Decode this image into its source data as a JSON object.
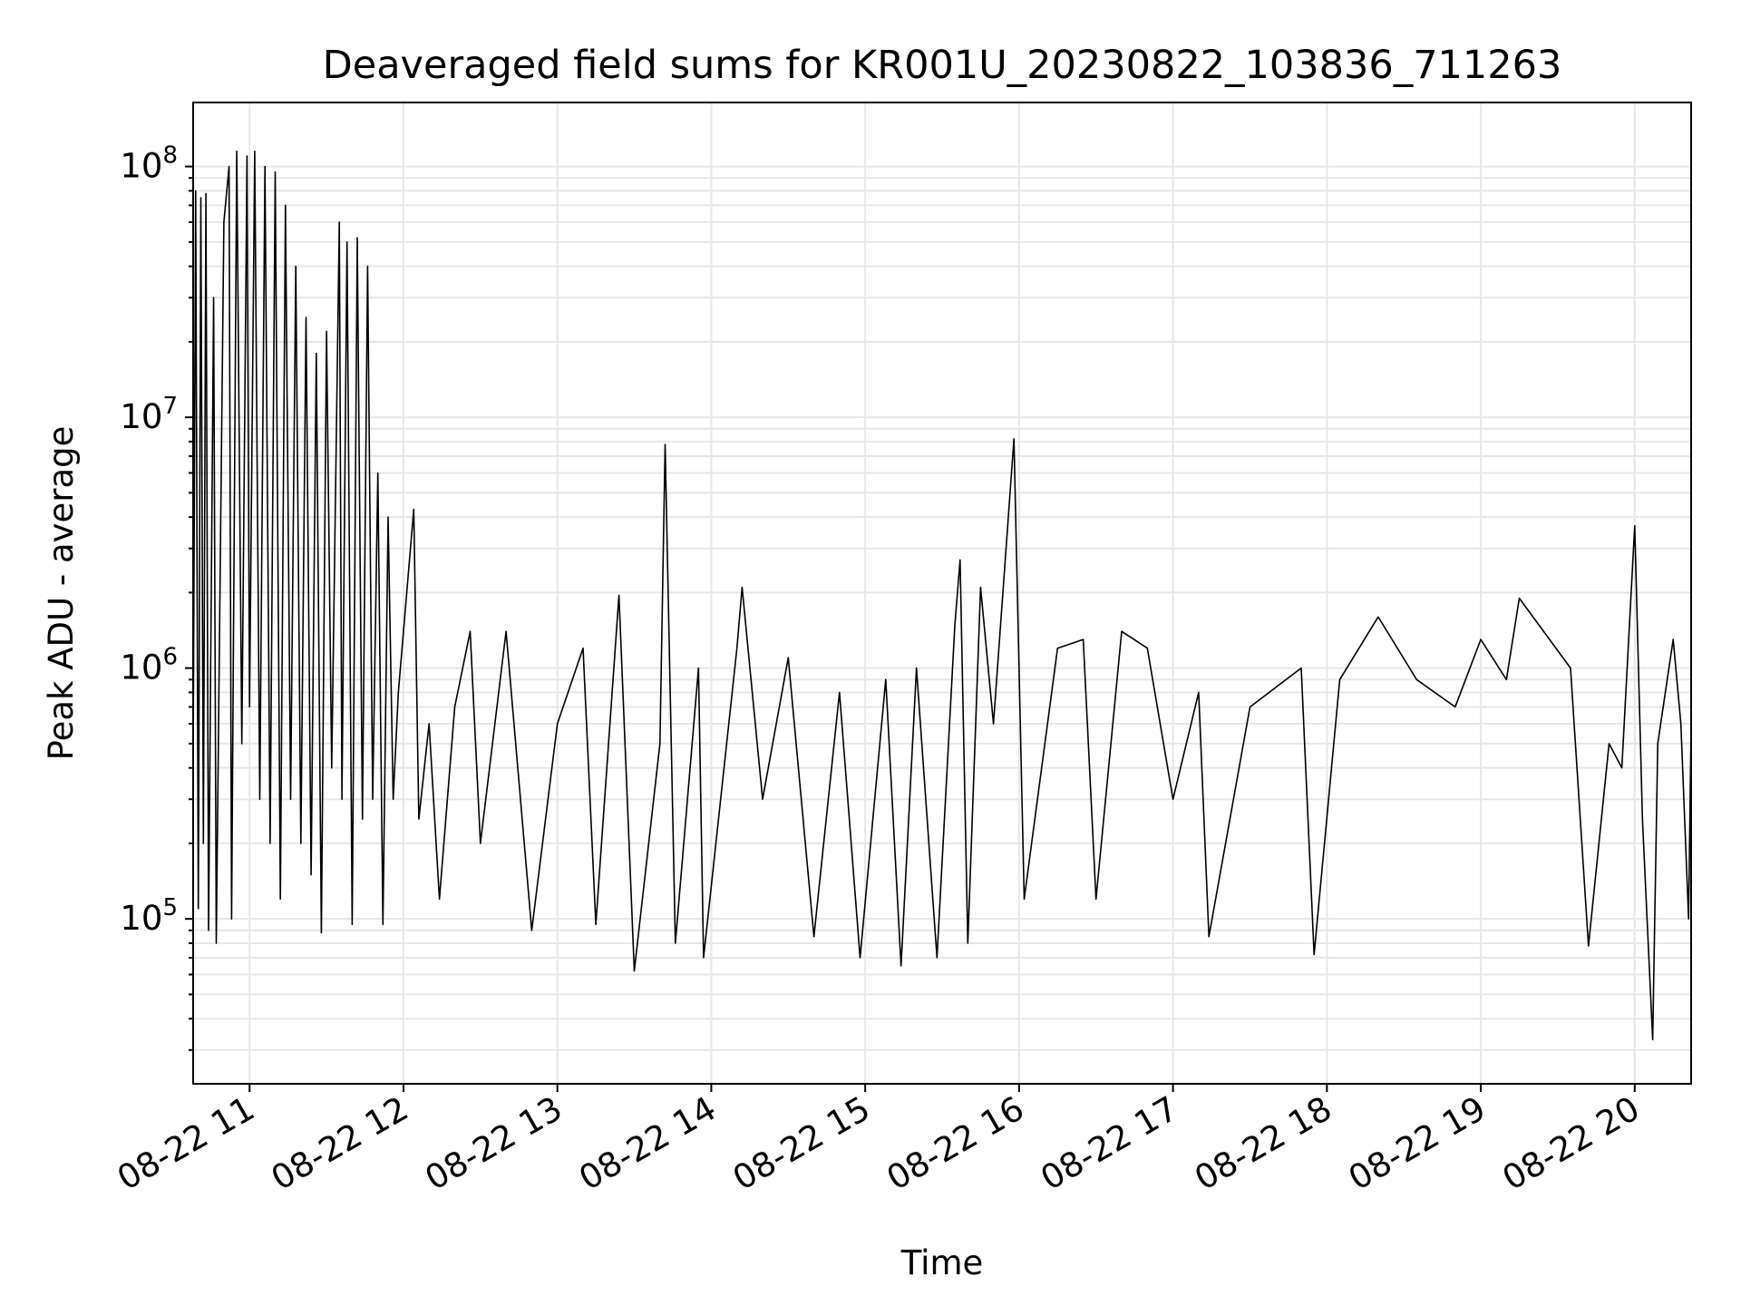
{
  "chart_data": {
    "type": "line",
    "title": "Deaveraged field sums for KR001U_20230822_103836_711263",
    "xlabel": "Time",
    "ylabel": "Peak ADU - average",
    "yscale": "log",
    "ylim": [
      22000,
      180000000
    ],
    "xlim": [
      "2023-08-22 10:38",
      "2023-08-22 20:22"
    ],
    "x_ticks": [
      {
        "t": "2023-08-22 11:00",
        "label": "08-22 11"
      },
      {
        "t": "2023-08-22 12:00",
        "label": "08-22 12"
      },
      {
        "t": "2023-08-22 13:00",
        "label": "08-22 13"
      },
      {
        "t": "2023-08-22 14:00",
        "label": "08-22 14"
      },
      {
        "t": "2023-08-22 15:00",
        "label": "08-22 15"
      },
      {
        "t": "2023-08-22 16:00",
        "label": "08-22 16"
      },
      {
        "t": "2023-08-22 17:00",
        "label": "08-22 17"
      },
      {
        "t": "2023-08-22 18:00",
        "label": "08-22 18"
      },
      {
        "t": "2023-08-22 19:00",
        "label": "08-22 19"
      },
      {
        "t": "2023-08-22 20:00",
        "label": "08-22 20"
      }
    ],
    "y_ticks": [
      {
        "value": 100000,
        "base": "10",
        "exp": "5"
      },
      {
        "value": 1000000,
        "base": "10",
        "exp": "6"
      },
      {
        "value": 10000000,
        "base": "10",
        "exp": "7"
      },
      {
        "value": 100000000,
        "base": "10",
        "exp": "8"
      }
    ],
    "grid": true,
    "line_color": "#000000",
    "series": [
      {
        "points": [
          [
            "2023-08-22 10:38",
            400000
          ],
          [
            "2023-08-22 10:39",
            80000000
          ],
          [
            "2023-08-22 10:40",
            110000
          ],
          [
            "2023-08-22 10:41",
            75000000
          ],
          [
            "2023-08-22 10:42",
            200000
          ],
          [
            "2023-08-22 10:43",
            78000000
          ],
          [
            "2023-08-22 10:44",
            90000
          ],
          [
            "2023-08-22 10:46",
            30000000
          ],
          [
            "2023-08-22 10:47",
            80000
          ],
          [
            "2023-08-22 10:50",
            60000000
          ],
          [
            "2023-08-22 10:52",
            100000000
          ],
          [
            "2023-08-22 10:53",
            100000
          ],
          [
            "2023-08-22 10:55",
            115000000
          ],
          [
            "2023-08-22 10:57",
            500000
          ],
          [
            "2023-08-22 10:59",
            110000000
          ],
          [
            "2023-08-22 11:00",
            700000
          ],
          [
            "2023-08-22 11:02",
            115000000
          ],
          [
            "2023-08-22 11:04",
            300000
          ],
          [
            "2023-08-22 11:06",
            100000000
          ],
          [
            "2023-08-22 11:08",
            200000
          ],
          [
            "2023-08-22 11:10",
            95000000
          ],
          [
            "2023-08-22 11:12",
            120000
          ],
          [
            "2023-08-22 11:14",
            70000000
          ],
          [
            "2023-08-22 11:16",
            300000
          ],
          [
            "2023-08-22 11:18",
            40000000
          ],
          [
            "2023-08-22 11:20",
            200000
          ],
          [
            "2023-08-22 11:22",
            25000000
          ],
          [
            "2023-08-22 11:24",
            150000
          ],
          [
            "2023-08-22 11:26",
            18000000
          ],
          [
            "2023-08-22 11:28",
            88000
          ],
          [
            "2023-08-22 11:30",
            22000000
          ],
          [
            "2023-08-22 11:32",
            400000
          ],
          [
            "2023-08-22 11:35",
            60000000
          ],
          [
            "2023-08-22 11:36",
            300000
          ],
          [
            "2023-08-22 11:38",
            50000000
          ],
          [
            "2023-08-22 11:40",
            95000
          ],
          [
            "2023-08-22 11:42",
            52000000
          ],
          [
            "2023-08-22 11:44",
            250000
          ],
          [
            "2023-08-22 11:46",
            40000000
          ],
          [
            "2023-08-22 11:48",
            300000
          ],
          [
            "2023-08-22 11:50",
            6000000
          ],
          [
            "2023-08-22 11:52",
            95000
          ],
          [
            "2023-08-22 11:54",
            4000000
          ],
          [
            "2023-08-22 11:56",
            300000
          ],
          [
            "2023-08-22 11:58",
            800000
          ],
          [
            "2023-08-22 12:04",
            4300000
          ],
          [
            "2023-08-22 12:06",
            250000
          ],
          [
            "2023-08-22 12:10",
            600000
          ],
          [
            "2023-08-22 12:14",
            120000
          ],
          [
            "2023-08-22 12:20",
            700000
          ],
          [
            "2023-08-22 12:26",
            1400000
          ],
          [
            "2023-08-22 12:30",
            200000
          ],
          [
            "2023-08-22 12:40",
            1400000
          ],
          [
            "2023-08-22 12:50",
            90000
          ],
          [
            "2023-08-22 13:00",
            600000
          ],
          [
            "2023-08-22 13:10",
            1200000
          ],
          [
            "2023-08-22 13:15",
            95000
          ],
          [
            "2023-08-22 13:24",
            1950000
          ],
          [
            "2023-08-22 13:30",
            62000
          ],
          [
            "2023-08-22 13:40",
            500000
          ],
          [
            "2023-08-22 13:42",
            7800000
          ],
          [
            "2023-08-22 13:46",
            80000
          ],
          [
            "2023-08-22 13:55",
            1000000
          ],
          [
            "2023-08-22 13:57",
            70000
          ],
          [
            "2023-08-22 14:10",
            1200000
          ],
          [
            "2023-08-22 14:12",
            2100000
          ],
          [
            "2023-08-22 14:20",
            300000
          ],
          [
            "2023-08-22 14:30",
            1100000
          ],
          [
            "2023-08-22 14:40",
            85000
          ],
          [
            "2023-08-22 14:50",
            800000
          ],
          [
            "2023-08-22 14:58",
            70000
          ],
          [
            "2023-08-22 15:08",
            900000
          ],
          [
            "2023-08-22 15:14",
            65000
          ],
          [
            "2023-08-22 15:20",
            1000000
          ],
          [
            "2023-08-22 15:28",
            70000
          ],
          [
            "2023-08-22 15:35",
            1500000
          ],
          [
            "2023-08-22 15:37",
            2700000
          ],
          [
            "2023-08-22 15:40",
            80000
          ],
          [
            "2023-08-22 15:45",
            2100000
          ],
          [
            "2023-08-22 15:50",
            600000
          ],
          [
            "2023-08-22 15:58",
            8200000
          ],
          [
            "2023-08-22 16:02",
            120000
          ],
          [
            "2023-08-22 16:15",
            1200000
          ],
          [
            "2023-08-22 16:25",
            1300000
          ],
          [
            "2023-08-22 16:30",
            120000
          ],
          [
            "2023-08-22 16:40",
            1400000
          ],
          [
            "2023-08-22 16:50",
            1200000
          ],
          [
            "2023-08-22 17:00",
            300000
          ],
          [
            "2023-08-22 17:10",
            800000
          ],
          [
            "2023-08-22 17:14",
            85000
          ],
          [
            "2023-08-22 17:30",
            700000
          ],
          [
            "2023-08-22 17:50",
            1000000
          ],
          [
            "2023-08-22 17:55",
            72000
          ],
          [
            "2023-08-22 18:05",
            900000
          ],
          [
            "2023-08-22 18:20",
            1600000
          ],
          [
            "2023-08-22 18:35",
            900000
          ],
          [
            "2023-08-22 18:50",
            700000
          ],
          [
            "2023-08-22 19:00",
            1300000
          ],
          [
            "2023-08-22 19:10",
            900000
          ],
          [
            "2023-08-22 19:15",
            1900000
          ],
          [
            "2023-08-22 19:35",
            1000000
          ],
          [
            "2023-08-22 19:42",
            78000
          ],
          [
            "2023-08-22 19:50",
            500000
          ],
          [
            "2023-08-22 19:55",
            400000
          ],
          [
            "2023-08-22 20:00",
            3700000
          ],
          [
            "2023-08-22 20:03",
            250000
          ],
          [
            "2023-08-22 20:07",
            33000
          ],
          [
            "2023-08-22 20:09",
            500000
          ],
          [
            "2023-08-22 20:15",
            1300000
          ],
          [
            "2023-08-22 20:18",
            600000
          ],
          [
            "2023-08-22 20:21",
            100000
          ],
          [
            "2023-08-22 20:22",
            600000
          ]
        ]
      }
    ]
  }
}
